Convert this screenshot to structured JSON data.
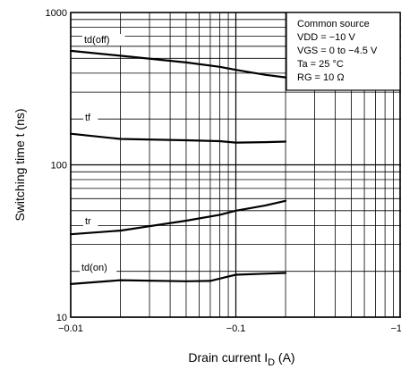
{
  "chart_data": {
    "type": "line",
    "xscale": "log",
    "yscale": "log",
    "xlim": [
      0.01,
      1
    ],
    "ylim": [
      10,
      1000
    ],
    "xticks": [
      {
        "value": 0.01,
        "label": "−0.01"
      },
      {
        "value": 0.1,
        "label": "−0.1"
      },
      {
        "value": 1,
        "label": "−1"
      }
    ],
    "yticks": [
      {
        "value": 10,
        "label": "10"
      },
      {
        "value": 100,
        "label": "100"
      },
      {
        "value": 1000,
        "label": "1000"
      }
    ],
    "xlabel": {
      "main": "Drain current",
      "symbol": "I",
      "sub": "D",
      "unit": "(A)"
    },
    "ylabel": "Switching time   t   (ns)",
    "grid": true,
    "series": [
      {
        "name": "td(off)",
        "points": [
          [
            0.01,
            560
          ],
          [
            0.02,
            520
          ],
          [
            0.05,
            470
          ],
          [
            0.08,
            440
          ],
          [
            0.1,
            420
          ],
          [
            0.15,
            390
          ],
          [
            0.2,
            375
          ]
        ]
      },
      {
        "name": "tf",
        "points": [
          [
            0.01,
            160
          ],
          [
            0.02,
            148
          ],
          [
            0.05,
            145
          ],
          [
            0.08,
            143
          ],
          [
            0.1,
            140
          ],
          [
            0.15,
            141
          ],
          [
            0.2,
            142
          ]
        ]
      },
      {
        "name": "tr",
        "points": [
          [
            0.01,
            35
          ],
          [
            0.02,
            37
          ],
          [
            0.05,
            43
          ],
          [
            0.08,
            47
          ],
          [
            0.1,
            50
          ],
          [
            0.15,
            54
          ],
          [
            0.2,
            58
          ]
        ]
      },
      {
        "name": "td(on)",
        "points": [
          [
            0.01,
            16.5
          ],
          [
            0.02,
            17.5
          ],
          [
            0.05,
            17.2
          ],
          [
            0.07,
            17.3
          ],
          [
            0.1,
            19.0
          ],
          [
            0.15,
            19.3
          ],
          [
            0.2,
            19.5
          ]
        ]
      }
    ],
    "conditions": [
      "Common source",
      "VDD = −10 V",
      "VGS = 0 to −4.5 V",
      "Ta = 25 °C",
      "RG = 10 Ω"
    ]
  }
}
